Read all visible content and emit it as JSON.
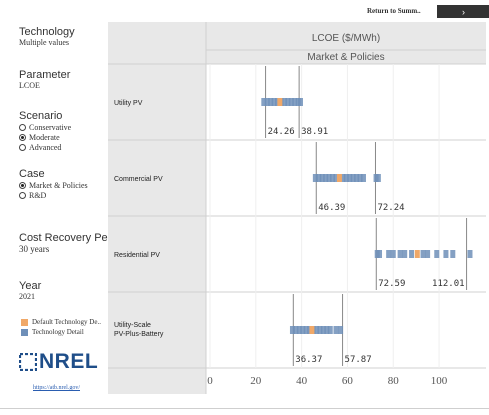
{
  "topbar": {
    "return_link": "Return to Summ..",
    "next_button": "›"
  },
  "filters": {
    "technology": {
      "title": "Technology",
      "value": "Multiple values"
    },
    "parameter": {
      "title": "Parameter",
      "value": "LCOE"
    },
    "scenario": {
      "title": "Scenario",
      "options": [
        "Conservative",
        "Moderate",
        "Advanced"
      ],
      "selected": 1
    },
    "case": {
      "title": "Case",
      "options": [
        "Market & Policies",
        "R&D"
      ],
      "selected": 0
    },
    "cost_recovery": {
      "title": "Cost Recovery Period",
      "value": "30 years"
    },
    "year": {
      "title": "Year",
      "value": "2021"
    }
  },
  "legend": {
    "items": [
      {
        "label": "Default Technology De..",
        "color": "#f0a868"
      },
      {
        "label": "Technology Detail",
        "color": "#6e8fb8"
      }
    ]
  },
  "logo": {
    "text": "NREL",
    "url": "https://atb.nrel.gov/"
  },
  "colors": {
    "default": "#f0a868",
    "detail": "#6e8fb8",
    "header_bg": "#e8e8e8",
    "grid": "#d8d8d8"
  },
  "chart_data": {
    "type": "scatter",
    "title": "LCOE ($/MWh)",
    "subtitle": "Market & Policies",
    "categories": [
      "Utility PV",
      "Commercial PV",
      "Residential PV",
      "Utility-Scale PV-Plus-Battery"
    ],
    "xlim": [
      0,
      117
    ],
    "xticks": [
      0,
      20,
      40,
      60,
      80,
      100
    ],
    "ranges": [
      {
        "min": 24.26,
        "max": 38.91,
        "min_label": "24.26",
        "max_label": "38.91"
      },
      {
        "min": 46.39,
        "max": 72.24,
        "min_label": "46.39",
        "max_label": "72.24"
      },
      {
        "min": 72.59,
        "max": 112.01,
        "min_label": "72.59",
        "max_label": "112.01"
      },
      {
        "min": 36.37,
        "max": 57.87,
        "min_label": "36.37",
        "max_label": "57.87"
      }
    ],
    "default_points": [
      30.5,
      56.5,
      90.5,
      44.5
    ],
    "detail_points": [
      [
        23.5,
        25,
        26.5,
        28,
        29.5,
        31,
        32.5,
        34,
        35.5,
        37,
        38.5,
        39.5
      ],
      [
        46,
        47.5,
        49,
        50.5,
        52,
        53.5,
        55,
        58,
        59.5,
        61,
        62.5,
        64,
        65.5,
        67,
        72.5,
        73.5
      ],
      [
        73,
        74,
        78,
        80,
        83,
        85,
        88,
        93,
        95,
        99,
        103,
        106,
        113.5
      ],
      [
        36,
        37.5,
        39,
        40.5,
        42,
        43.5,
        45,
        46.5,
        48,
        49.5,
        51,
        52.5,
        55,
        57
      ]
    ]
  }
}
